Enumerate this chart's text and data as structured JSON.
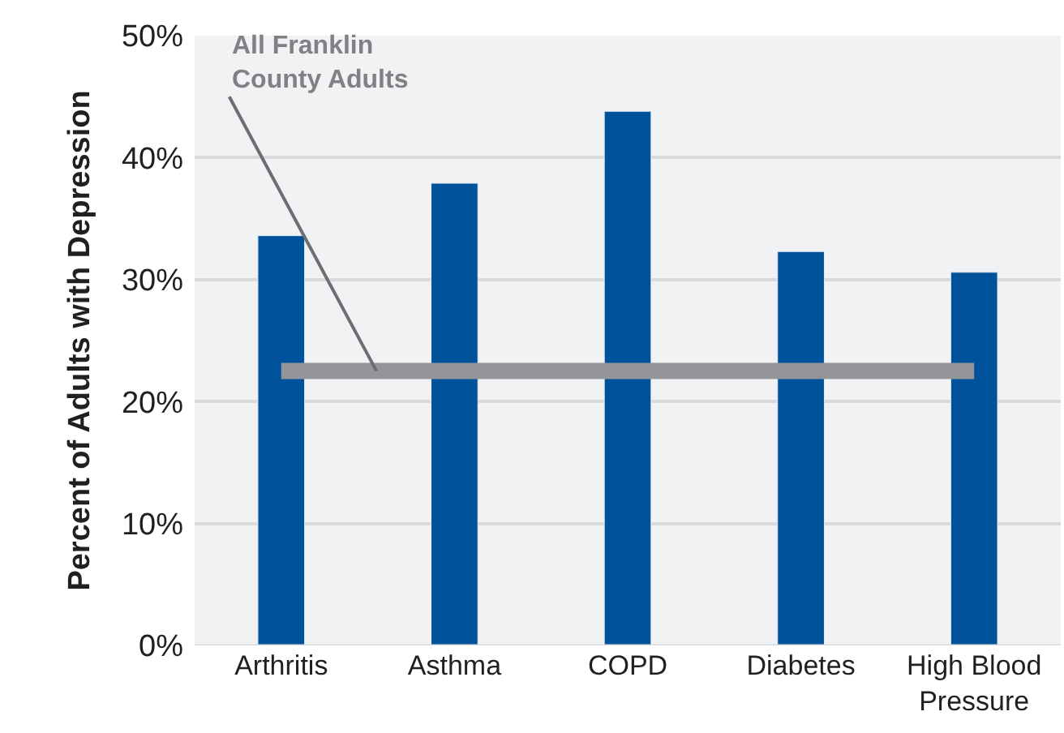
{
  "chart_data": {
    "type": "bar",
    "ylabel": "Percent of Adults with Depression",
    "categories": [
      "Arthritis",
      "Asthma",
      "COPD",
      "Diabetes",
      "High Blood\nPressure"
    ],
    "values": [
      33.6,
      37.9,
      43.8,
      32.3,
      30.6
    ],
    "color": "#00529b",
    "ylim": [
      0,
      50
    ],
    "yticks": [
      {
        "value": 0,
        "label": "0%"
      },
      {
        "value": 10,
        "label": "10%"
      },
      {
        "value": 20,
        "label": "20%"
      },
      {
        "value": 30,
        "label": "30%"
      },
      {
        "value": 40,
        "label": "40%"
      },
      {
        "value": 50,
        "label": "50%"
      }
    ],
    "grid": "y",
    "ref_lines": [
      {
        "axis": "y",
        "value": 22.5,
        "label": "All Franklin\nCounty Adults",
        "color": "#939598"
      }
    ]
  }
}
